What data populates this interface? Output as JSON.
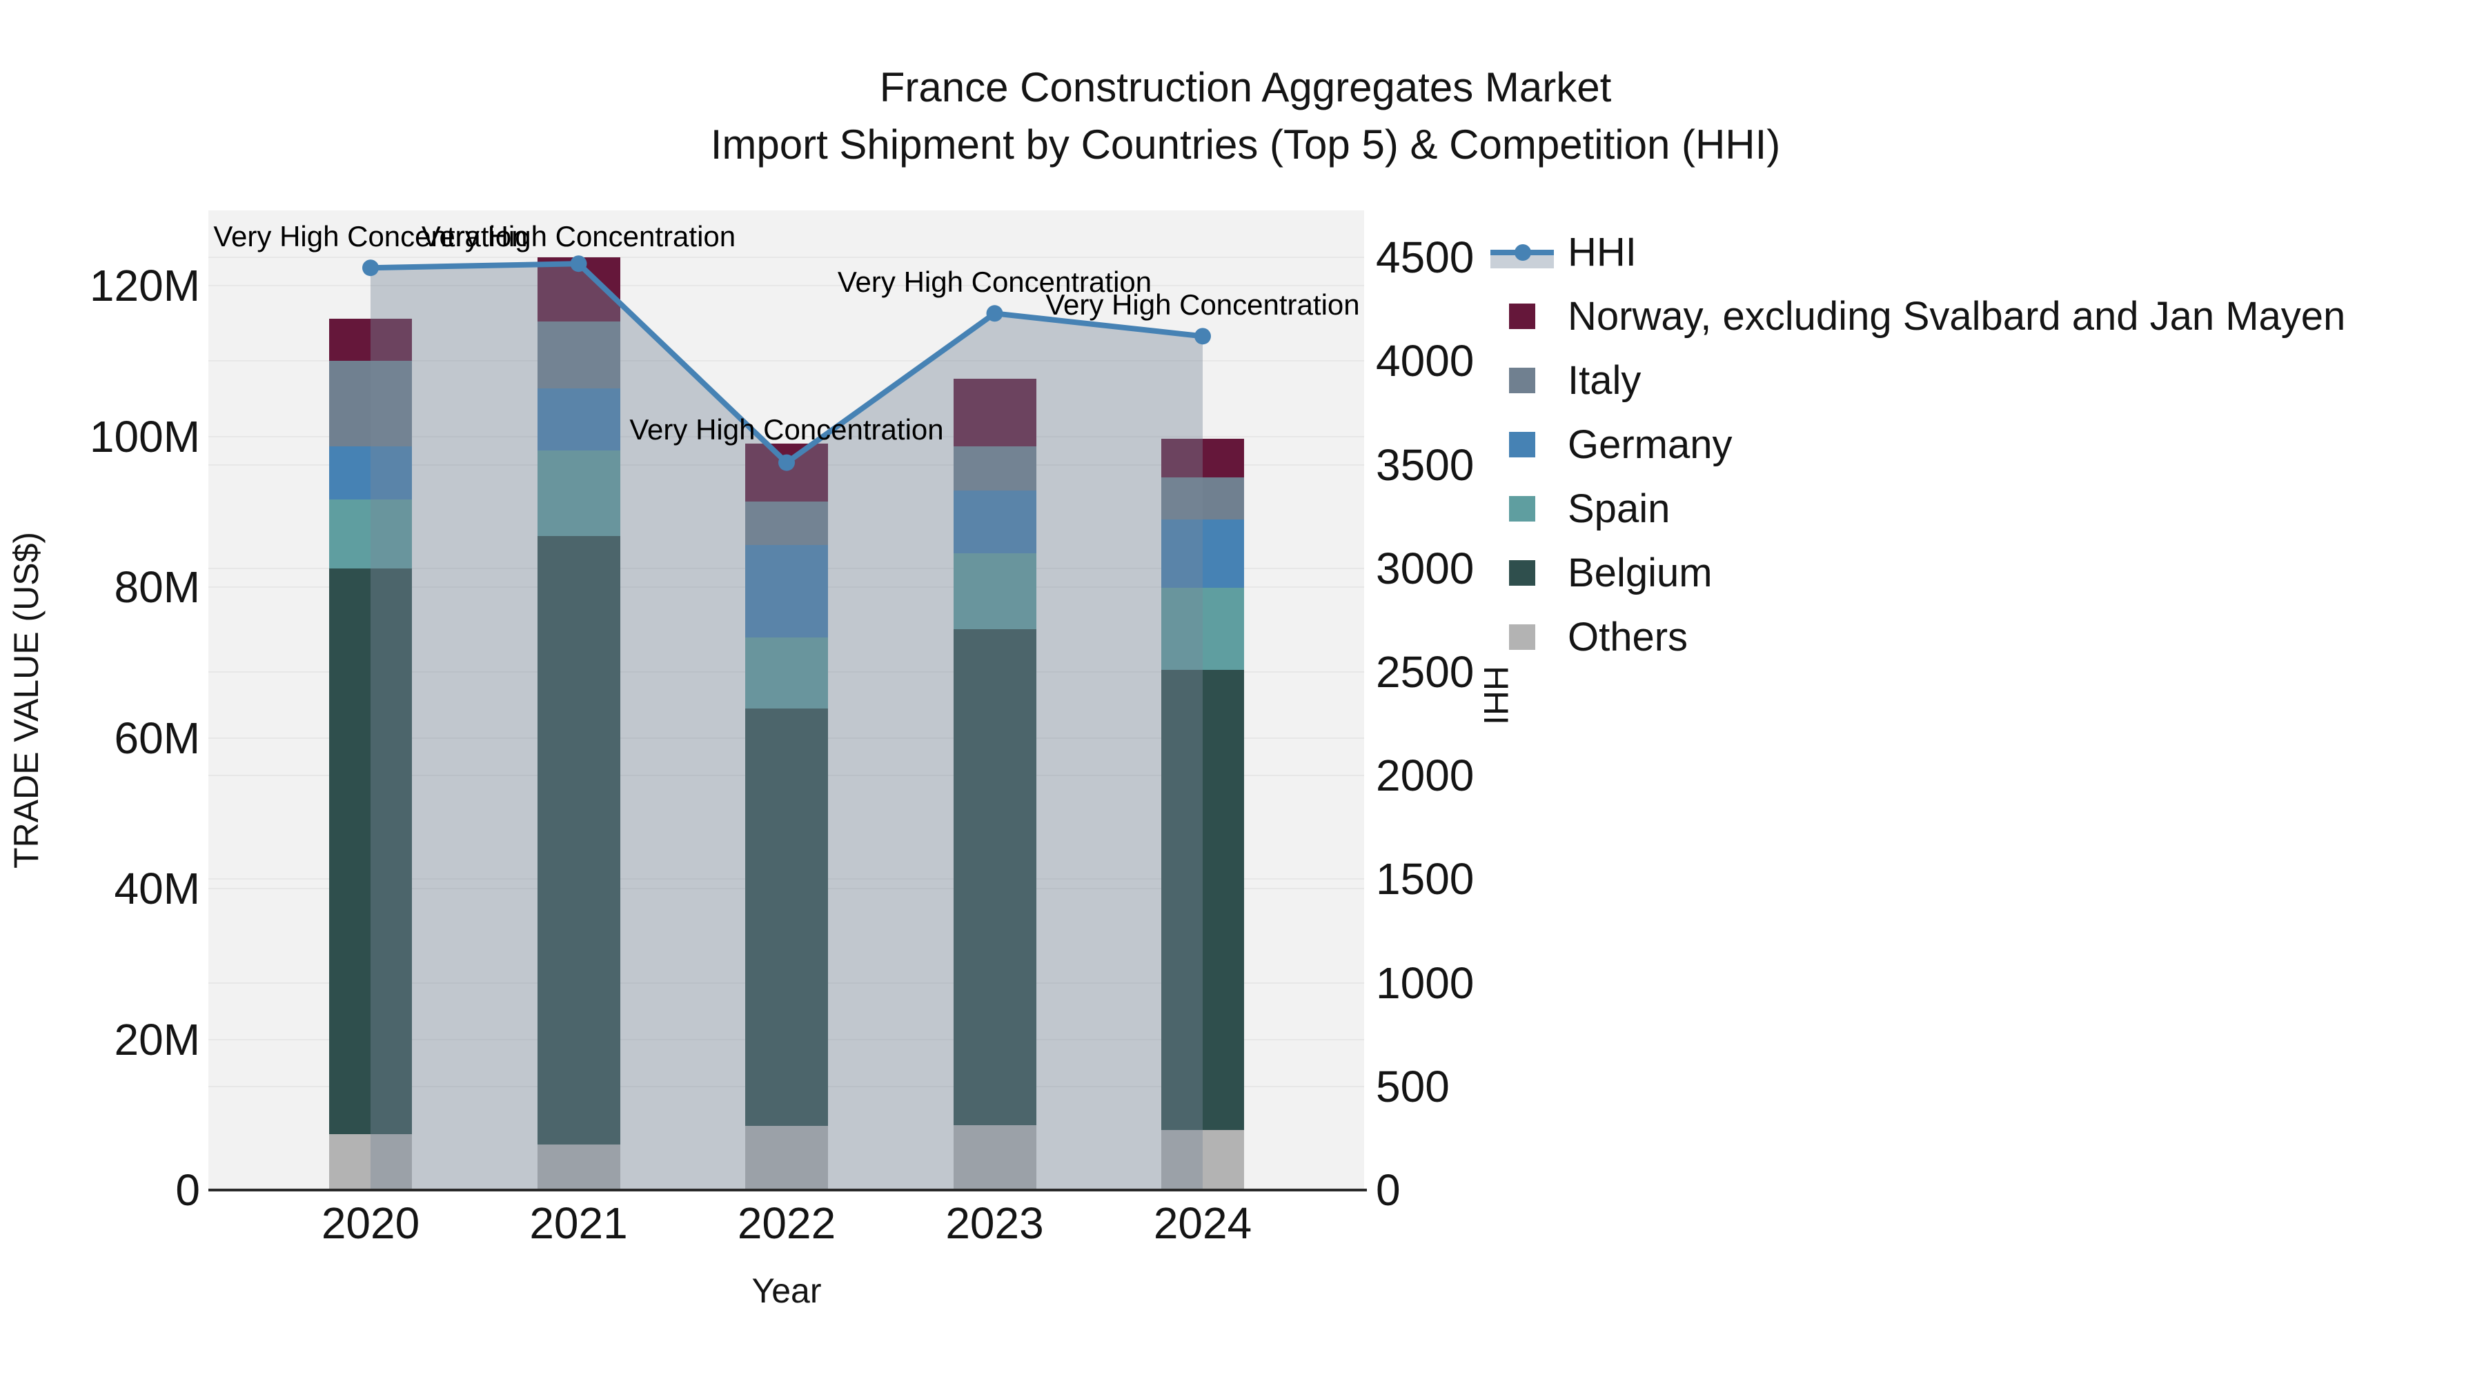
{
  "title": {
    "line1": "France Construction Aggregates Market",
    "line2": "Import Shipment by Countries (Top 5) & Competition (HHI)"
  },
  "chart_data": {
    "type": "bar",
    "subtype": "stacked-bars-with-line-overlay",
    "categories": [
      "2020",
      "2021",
      "2022",
      "2023",
      "2024"
    ],
    "xlabel": "Year",
    "left_axis": {
      "label": "TRADE VALUE (US$)",
      "unit": "US$ millions",
      "tick_labels": [
        "0",
        "20M",
        "40M",
        "60M",
        "80M",
        "100M",
        "120M"
      ],
      "tick_values_m": [
        0,
        20,
        40,
        60,
        80,
        100,
        120
      ],
      "range_m": [
        0,
        130
      ]
    },
    "right_axis": {
      "label": "HHI",
      "tick_labels": [
        "0",
        "500",
        "1000",
        "1500",
        "2000",
        "2500",
        "3000",
        "3500",
        "4000",
        "4500"
      ],
      "tick_values": [
        0,
        500,
        1000,
        1500,
        2000,
        2500,
        3000,
        3500,
        4000,
        4500
      ],
      "range": [
        0,
        4727
      ]
    },
    "series": [
      {
        "name": "Others",
        "color": "#b3b3b3",
        "values_musd": [
          7.4,
          6.0,
          8.5,
          8.6,
          8.0
        ]
      },
      {
        "name": "Belgium",
        "color": "#2f4f4d",
        "values_musd": [
          75.1,
          80.8,
          55.4,
          65.8,
          61.0
        ]
      },
      {
        "name": "Spain",
        "color": "#5f9ea0",
        "values_musd": [
          9.1,
          11.3,
          9.4,
          10.1,
          10.9
        ]
      },
      {
        "name": "Germany",
        "color": "#4682b4",
        "values_musd": [
          7.1,
          8.3,
          12.3,
          8.3,
          9.1
        ]
      },
      {
        "name": "Italy",
        "color": "#708090",
        "values_musd": [
          11.3,
          8.9,
          5.8,
          5.9,
          5.6
        ]
      },
      {
        "name": "Norway, excluding Svalbard and Jan Mayen",
        "color": "#65173a",
        "values_musd": [
          5.6,
          8.5,
          7.7,
          9.0,
          5.1
        ]
      }
    ],
    "totals_musd": [
      115.6,
      123.8,
      99.1,
      107.7,
      99.7
    ],
    "line_series": {
      "name": "HHI",
      "color": "#4682b4",
      "marker": "circle",
      "area_fill": "rgba(119,136,153,0.40)",
      "values": [
        4450,
        4470,
        3510,
        4230,
        4120
      ]
    },
    "point_annotations": [
      {
        "x": "2020",
        "text": "Very High Concentration"
      },
      {
        "x": "2021",
        "text": "Very High Concentration"
      },
      {
        "x": "2022",
        "text": "Very High Concentration"
      },
      {
        "x": "2023",
        "text": "Very High Concentration"
      },
      {
        "x": "2024",
        "text": "Very High Concentration"
      }
    ],
    "legend": {
      "position": "right",
      "entries": [
        "HHI",
        "Norway, excluding Svalbard and Jan Mayen",
        "Italy",
        "Germany",
        "Spain",
        "Belgium",
        "Others"
      ]
    },
    "grid": true,
    "plot_background": "#f2f2f2"
  }
}
